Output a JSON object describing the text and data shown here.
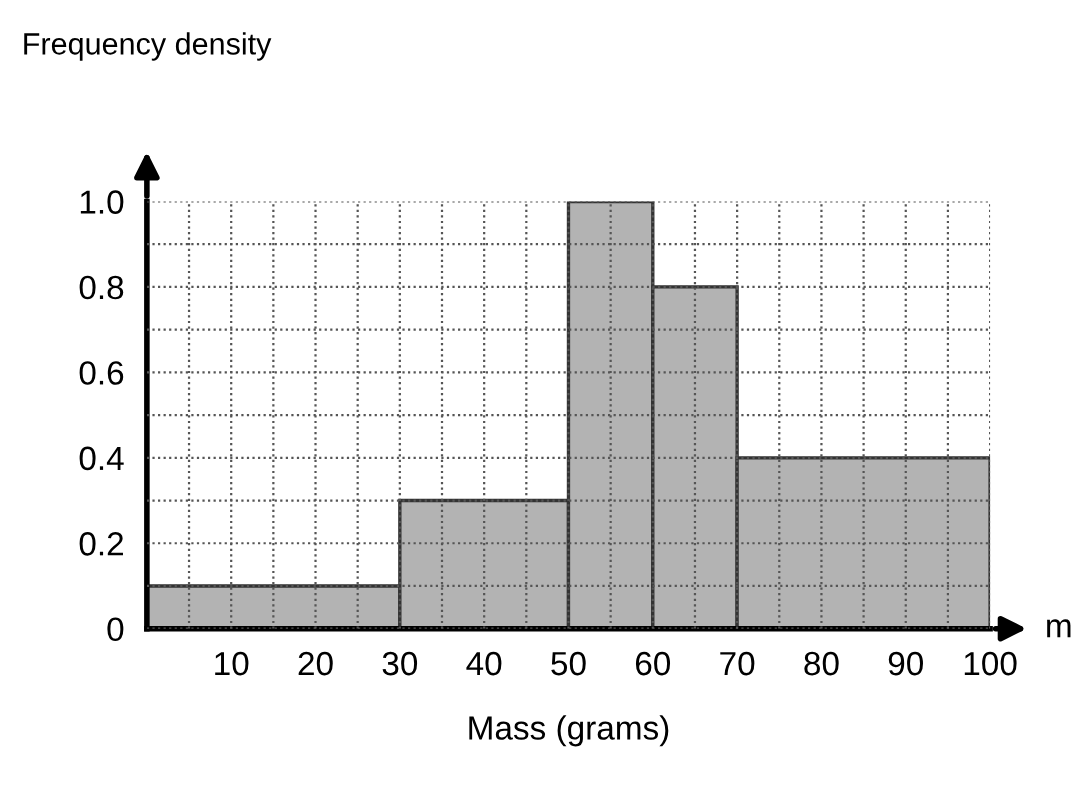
{
  "chart_data": {
    "type": "histogram",
    "xlabel": "Mass (grams)",
    "ylabel": "Frequency density",
    "annotations": [
      "m"
    ],
    "bins": [
      0,
      30,
      50,
      60,
      70,
      100
    ],
    "values": [
      0.1,
      0.3,
      1.0,
      0.8,
      0.4
    ],
    "color": "#b3b3b3",
    "xlim": [
      0,
      100
    ],
    "ylim": [
      0,
      1.0
    ],
    "xticks": [
      {
        "value": 5,
        "label": null
      },
      10,
      {
        "value": 15,
        "label": null
      },
      20,
      {
        "value": 25,
        "label": null
      },
      30,
      {
        "value": 35,
        "label": null
      },
      40,
      {
        "value": 45,
        "label": null
      },
      50,
      {
        "value": 55,
        "label": null
      },
      60,
      {
        "value": 65,
        "label": null
      },
      70,
      {
        "value": 75,
        "label": null
      },
      80,
      {
        "value": 85,
        "label": null
      },
      90,
      {
        "value": 95,
        "label": null
      },
      100
    ],
    "yticks": [
      0,
      {
        "value": 0.1,
        "label": null
      },
      0.2,
      {
        "value": 0.3,
        "label": null
      },
      0.4,
      {
        "value": 0.5,
        "label": null
      },
      0.6,
      {
        "value": 0.7,
        "label": null
      },
      0.8,
      {
        "value": 0.9,
        "label": null
      },
      {
        "value": 1.0,
        "label": "1.0"
      }
    ],
    "grid": true
  }
}
